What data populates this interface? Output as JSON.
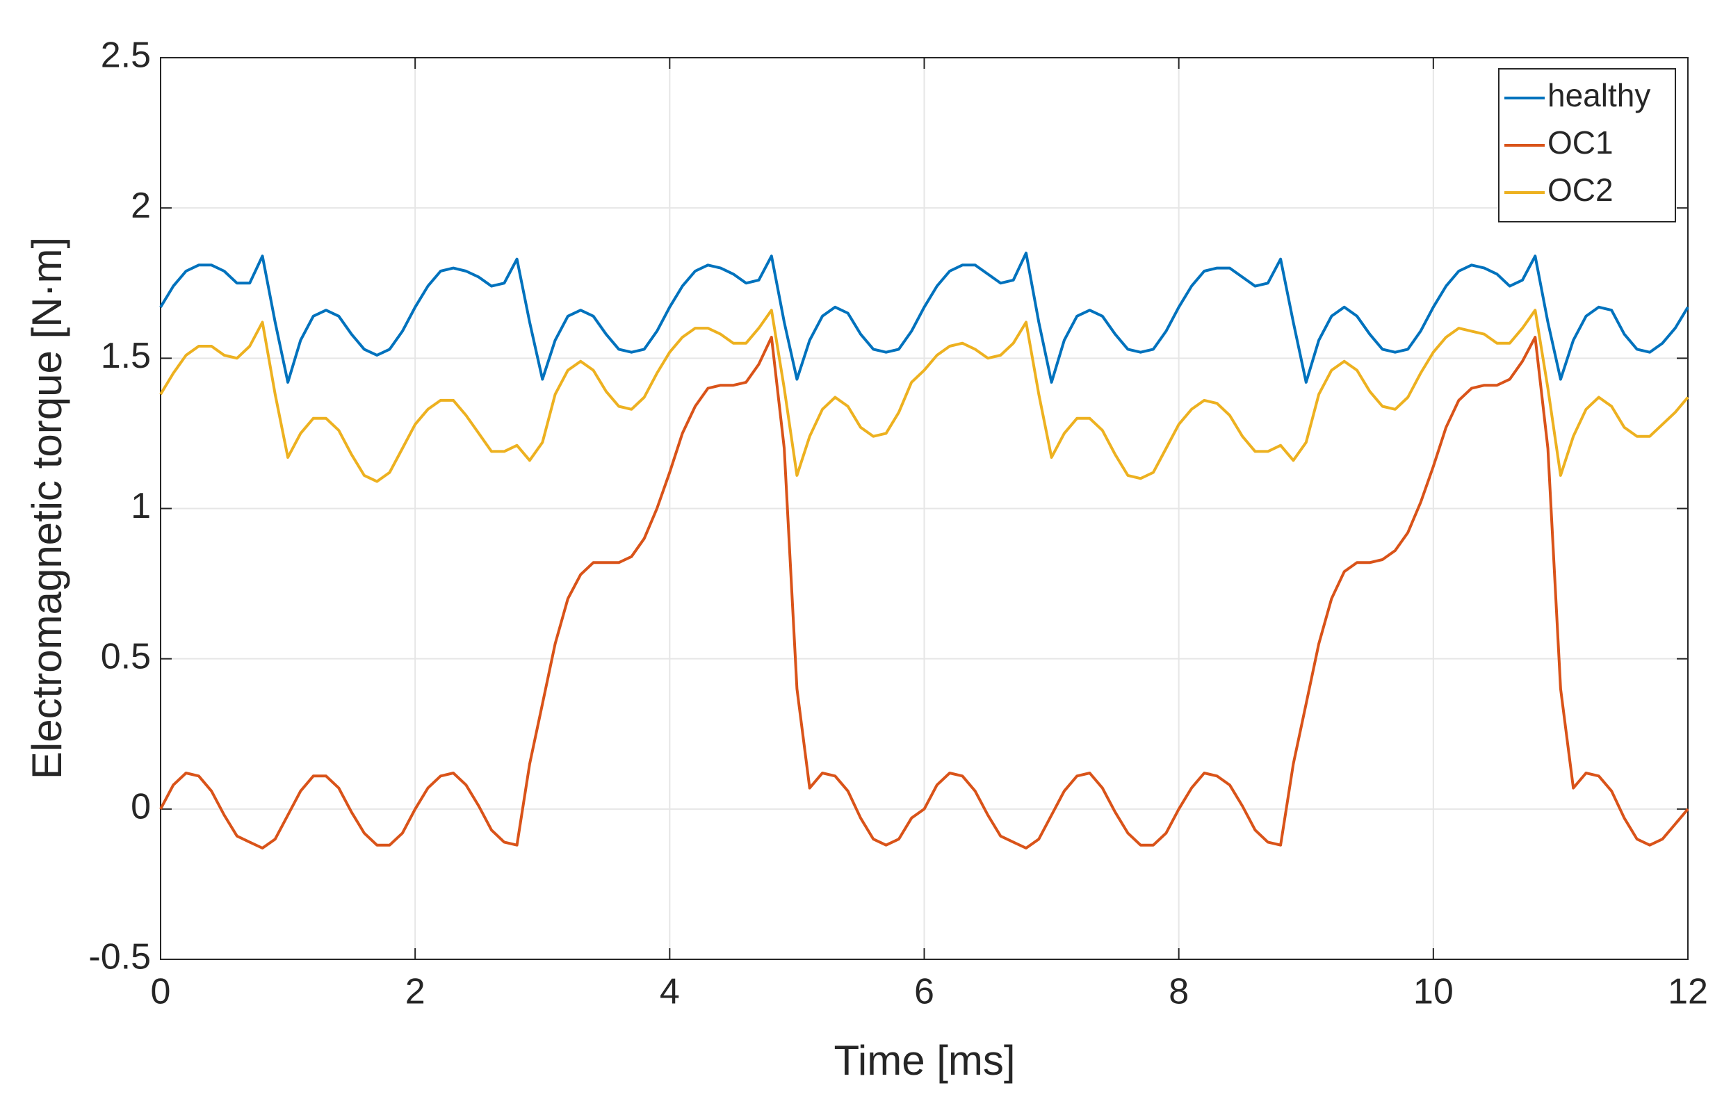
{
  "chart_data": {
    "type": "line",
    "xlabel": "Time  [ms]",
    "ylabel": "Electromagnetic torque [N·m]",
    "xlim": [
      0,
      12
    ],
    "xticks": [
      0,
      2,
      4,
      6,
      8,
      10,
      12
    ],
    "ylim": [
      -0.5,
      2.5
    ],
    "yticks": [
      -0.5,
      0,
      0.5,
      1,
      1.5,
      2,
      2.5
    ],
    "grid": true,
    "legend": "upper right",
    "x": [
      0,
      0.1,
      0.2,
      0.3,
      0.4,
      0.5,
      0.6,
      0.7,
      0.8,
      0.9,
      1,
      1.1,
      1.2,
      1.3,
      1.4,
      1.5,
      1.6,
      1.7,
      1.8,
      1.9,
      2,
      2.1,
      2.2,
      2.3,
      2.4,
      2.5,
      2.6,
      2.7,
      2.8,
      2.9,
      3,
      3.1,
      3.2,
      3.3,
      3.4,
      3.5,
      3.6,
      3.7,
      3.8,
      3.9,
      4,
      4.1,
      4.2,
      4.3,
      4.4,
      4.5,
      4.6,
      4.7,
      4.8,
      4.9,
      5,
      5.1,
      5.2,
      5.3,
      5.4,
      5.5,
      5.6,
      5.7,
      5.8,
      5.9,
      6,
      6.1,
      6.2,
      6.3,
      6.4,
      6.5,
      6.6,
      6.7,
      6.8,
      6.9,
      7,
      7.1,
      7.2,
      7.3,
      7.4,
      7.5,
      7.6,
      7.7,
      7.8,
      7.9,
      8,
      8.1,
      8.2,
      8.3,
      8.4,
      8.5,
      8.6,
      8.7,
      8.8,
      8.9,
      9,
      9.1,
      9.2,
      9.3,
      9.4,
      9.5,
      9.6,
      9.7,
      9.8,
      9.9,
      10,
      10.1,
      10.2,
      10.3,
      10.4,
      10.5,
      10.6,
      10.7,
      10.8,
      10.9,
      11,
      11.1,
      11.2,
      11.3,
      11.4,
      11.5,
      11.6,
      11.7,
      11.8,
      11.9,
      12
    ],
    "series": [
      {
        "name": "healthy",
        "color": "#0072bd",
        "values": [
          1.67,
          1.74,
          1.79,
          1.81,
          1.81,
          1.79,
          1.75,
          1.75,
          1.84,
          1.62,
          1.42,
          1.56,
          1.64,
          1.66,
          1.64,
          1.58,
          1.53,
          1.51,
          1.53,
          1.59,
          1.67,
          1.74,
          1.79,
          1.8,
          1.79,
          1.77,
          1.74,
          1.75,
          1.83,
          1.62,
          1.43,
          1.56,
          1.64,
          1.66,
          1.64,
          1.58,
          1.53,
          1.52,
          1.53,
          1.59,
          1.67,
          1.74,
          1.79,
          1.81,
          1.8,
          1.78,
          1.75,
          1.76,
          1.84,
          1.62,
          1.43,
          1.56,
          1.64,
          1.67,
          1.65,
          1.58,
          1.53,
          1.52,
          1.53,
          1.59,
          1.67,
          1.74,
          1.79,
          1.81,
          1.81,
          1.78,
          1.75,
          1.76,
          1.85,
          1.62,
          1.42,
          1.56,
          1.64,
          1.66,
          1.64,
          1.58,
          1.53,
          1.52,
          1.53,
          1.59,
          1.67,
          1.74,
          1.79,
          1.8,
          1.8,
          1.77,
          1.74,
          1.75,
          1.83,
          1.62,
          1.42,
          1.56,
          1.64,
          1.67,
          1.64,
          1.58,
          1.53,
          1.52,
          1.53,
          1.59,
          1.67,
          1.74,
          1.79,
          1.81,
          1.8,
          1.78,
          1.74,
          1.76,
          1.84,
          1.62,
          1.43,
          1.56,
          1.64,
          1.67,
          1.66,
          1.58,
          1.53,
          1.52,
          1.55,
          1.6,
          1.67
        ]
      },
      {
        "name": "OC1",
        "color": "#d95319",
        "values": [
          0.0,
          0.08,
          0.12,
          0.11,
          0.06,
          -0.02,
          -0.09,
          -0.11,
          -0.13,
          -0.1,
          -0.02,
          0.06,
          0.11,
          0.11,
          0.07,
          -0.01,
          -0.08,
          -0.12,
          -0.12,
          -0.08,
          0.0,
          0.07,
          0.11,
          0.12,
          0.08,
          0.01,
          -0.07,
          -0.11,
          -0.12,
          0.15,
          0.35,
          0.55,
          0.7,
          0.78,
          0.82,
          0.82,
          0.82,
          0.84,
          0.9,
          1.0,
          1.12,
          1.25,
          1.34,
          1.4,
          1.41,
          1.41,
          1.42,
          1.48,
          1.57,
          1.2,
          0.4,
          0.07,
          0.12,
          0.11,
          0.06,
          -0.03,
          -0.1,
          -0.12,
          -0.1,
          -0.03,
          0.0,
          0.08,
          0.12,
          0.11,
          0.06,
          -0.02,
          -0.09,
          -0.11,
          -0.13,
          -0.1,
          -0.02,
          0.06,
          0.11,
          0.12,
          0.07,
          -0.01,
          -0.08,
          -0.12,
          -0.12,
          -0.08,
          0.0,
          0.07,
          0.12,
          0.11,
          0.08,
          0.01,
          -0.07,
          -0.11,
          -0.12,
          0.15,
          0.35,
          0.55,
          0.7,
          0.79,
          0.82,
          0.82,
          0.83,
          0.86,
          0.92,
          1.02,
          1.14,
          1.27,
          1.36,
          1.4,
          1.41,
          1.41,
          1.43,
          1.49,
          1.57,
          1.2,
          0.4,
          0.07,
          0.12,
          0.11,
          0.06,
          -0.03,
          -0.1,
          -0.12,
          -0.1,
          -0.05,
          0.0
        ]
      },
      {
        "name": "OC2",
        "color": "#edb120",
        "values": [
          1.38,
          1.45,
          1.51,
          1.54,
          1.54,
          1.51,
          1.5,
          1.54,
          1.62,
          1.38,
          1.17,
          1.25,
          1.3,
          1.3,
          1.26,
          1.18,
          1.11,
          1.09,
          1.12,
          1.2,
          1.28,
          1.33,
          1.36,
          1.36,
          1.31,
          1.25,
          1.19,
          1.19,
          1.21,
          1.16,
          1.22,
          1.38,
          1.46,
          1.49,
          1.46,
          1.39,
          1.34,
          1.33,
          1.37,
          1.45,
          1.52,
          1.57,
          1.6,
          1.6,
          1.58,
          1.55,
          1.55,
          1.6,
          1.66,
          1.4,
          1.11,
          1.24,
          1.33,
          1.37,
          1.34,
          1.27,
          1.24,
          1.25,
          1.32,
          1.42,
          1.46,
          1.51,
          1.54,
          1.55,
          1.53,
          1.5,
          1.51,
          1.55,
          1.62,
          1.38,
          1.17,
          1.25,
          1.3,
          1.3,
          1.26,
          1.18,
          1.11,
          1.1,
          1.12,
          1.2,
          1.28,
          1.33,
          1.36,
          1.35,
          1.31,
          1.24,
          1.19,
          1.19,
          1.21,
          1.16,
          1.22,
          1.38,
          1.46,
          1.49,
          1.46,
          1.39,
          1.34,
          1.33,
          1.37,
          1.45,
          1.52,
          1.57,
          1.6,
          1.59,
          1.58,
          1.55,
          1.55,
          1.6,
          1.66,
          1.4,
          1.11,
          1.24,
          1.33,
          1.37,
          1.34,
          1.27,
          1.24,
          1.24,
          1.28,
          1.32,
          1.37
        ]
      }
    ]
  }
}
